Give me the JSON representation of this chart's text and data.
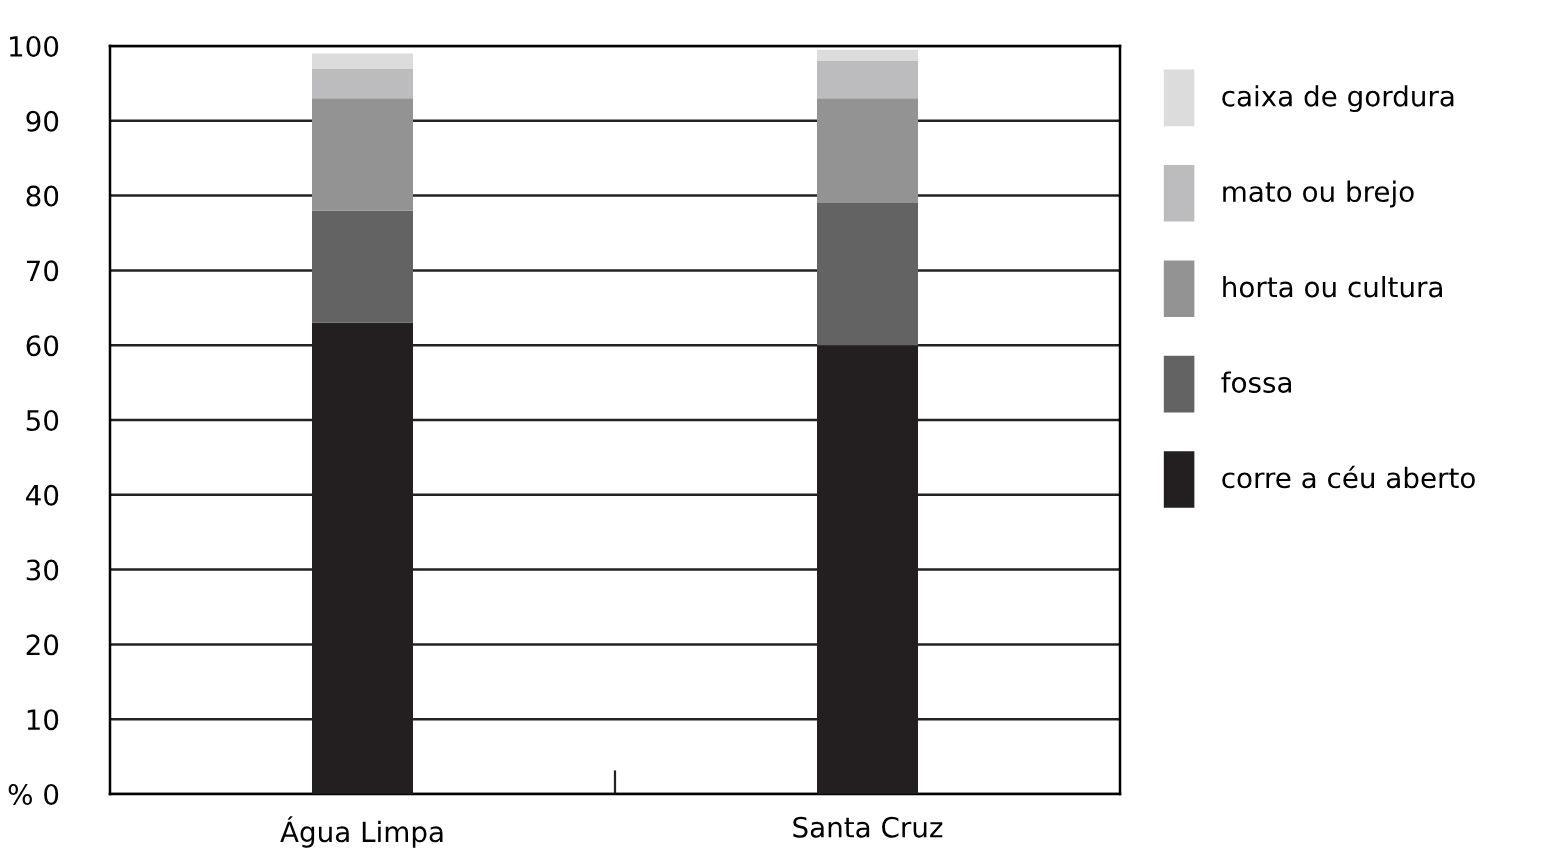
{
  "chart_data": {
    "type": "bar",
    "stacked": true,
    "categories": [
      "Água Limpa",
      "Santa Cruz"
    ],
    "series": [
      {
        "name": "corre a céu aberto",
        "color": "#231f20",
        "values": [
          63,
          60
        ]
      },
      {
        "name": "fossa",
        "color": "#636363",
        "values": [
          15,
          19
        ]
      },
      {
        "name": "horta ou cultura",
        "color": "#939393",
        "values": [
          15,
          14
        ]
      },
      {
        "name": "mato ou brejo",
        "color": "#bcbcbe",
        "values": [
          4,
          5
        ]
      },
      {
        "name": "caixa de gordura",
        "color": "#dcdcdc",
        "values": [
          2,
          1.5
        ]
      }
    ],
    "ylim": [
      0,
      100
    ],
    "yticks": [
      {
        "value": 0,
        "label": "% 0"
      },
      10,
      20,
      30,
      40,
      50,
      60,
      70,
      80,
      90,
      100
    ],
    "grid": "y",
    "legend": "right"
  }
}
